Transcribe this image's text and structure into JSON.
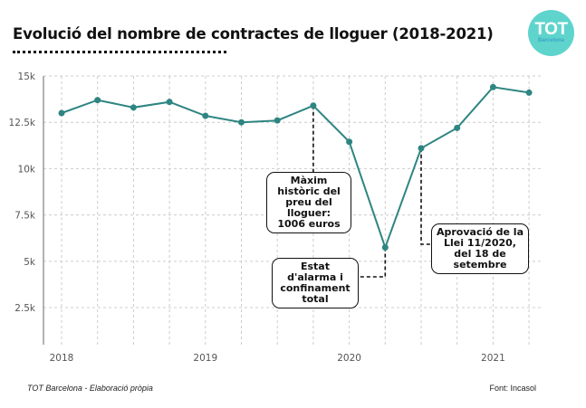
{
  "header": {
    "title": "Evolució del nombre de contractes de lloguer (2018-2021)",
    "logo_main": "TOT",
    "logo_sub": "Barcelona"
  },
  "footer": {
    "credit": "TOT Barcelona - Elaboració pròpia",
    "source": "Font: Incasol"
  },
  "colors": {
    "line": "#2e8582",
    "logo": "#5fd4cc",
    "grid": "#cccccc"
  },
  "chart_data": {
    "type": "line",
    "title": "Evolució del nombre de contractes de lloguer (2018-2021)",
    "xlabel": "",
    "ylabel": "",
    "x": [
      "2018 Q1",
      "2018 Q2",
      "2018 Q3",
      "2018 Q4",
      "2019 Q1",
      "2019 Q2",
      "2019 Q3",
      "2019 Q4",
      "2020 Q1",
      "2020 Q2",
      "2020 Q3",
      "2020 Q4",
      "2021 Q1",
      "2021 Q2"
    ],
    "series": [
      {
        "name": "Contractes de lloguer",
        "values": [
          13000,
          13700,
          13300,
          13600,
          12850,
          12500,
          12600,
          13400,
          11450,
          5750,
          11100,
          12200,
          14400,
          14100
        ]
      }
    ],
    "x_tick_labels": [
      "2018",
      "2019",
      "2020",
      "2021"
    ],
    "x_tick_indices": [
      0,
      4,
      8,
      12
    ],
    "y_ticks": [
      2500,
      5000,
      7500,
      10000,
      12500,
      15000
    ],
    "y_tick_labels": [
      "2.5k",
      "5k",
      "7.5k",
      "10k",
      "12.5k",
      "15k"
    ],
    "ylim": [
      500,
      15000
    ],
    "grid": true,
    "annotations": [
      {
        "index": 7,
        "text": "Màxim històric del preu del lloguer: 1006 euros"
      },
      {
        "index": 9,
        "text": "Estat d'alarma i confinament total"
      },
      {
        "index": 10,
        "text": "Aprovació de la Llei 11/2020, del 18 de setembre"
      }
    ]
  }
}
